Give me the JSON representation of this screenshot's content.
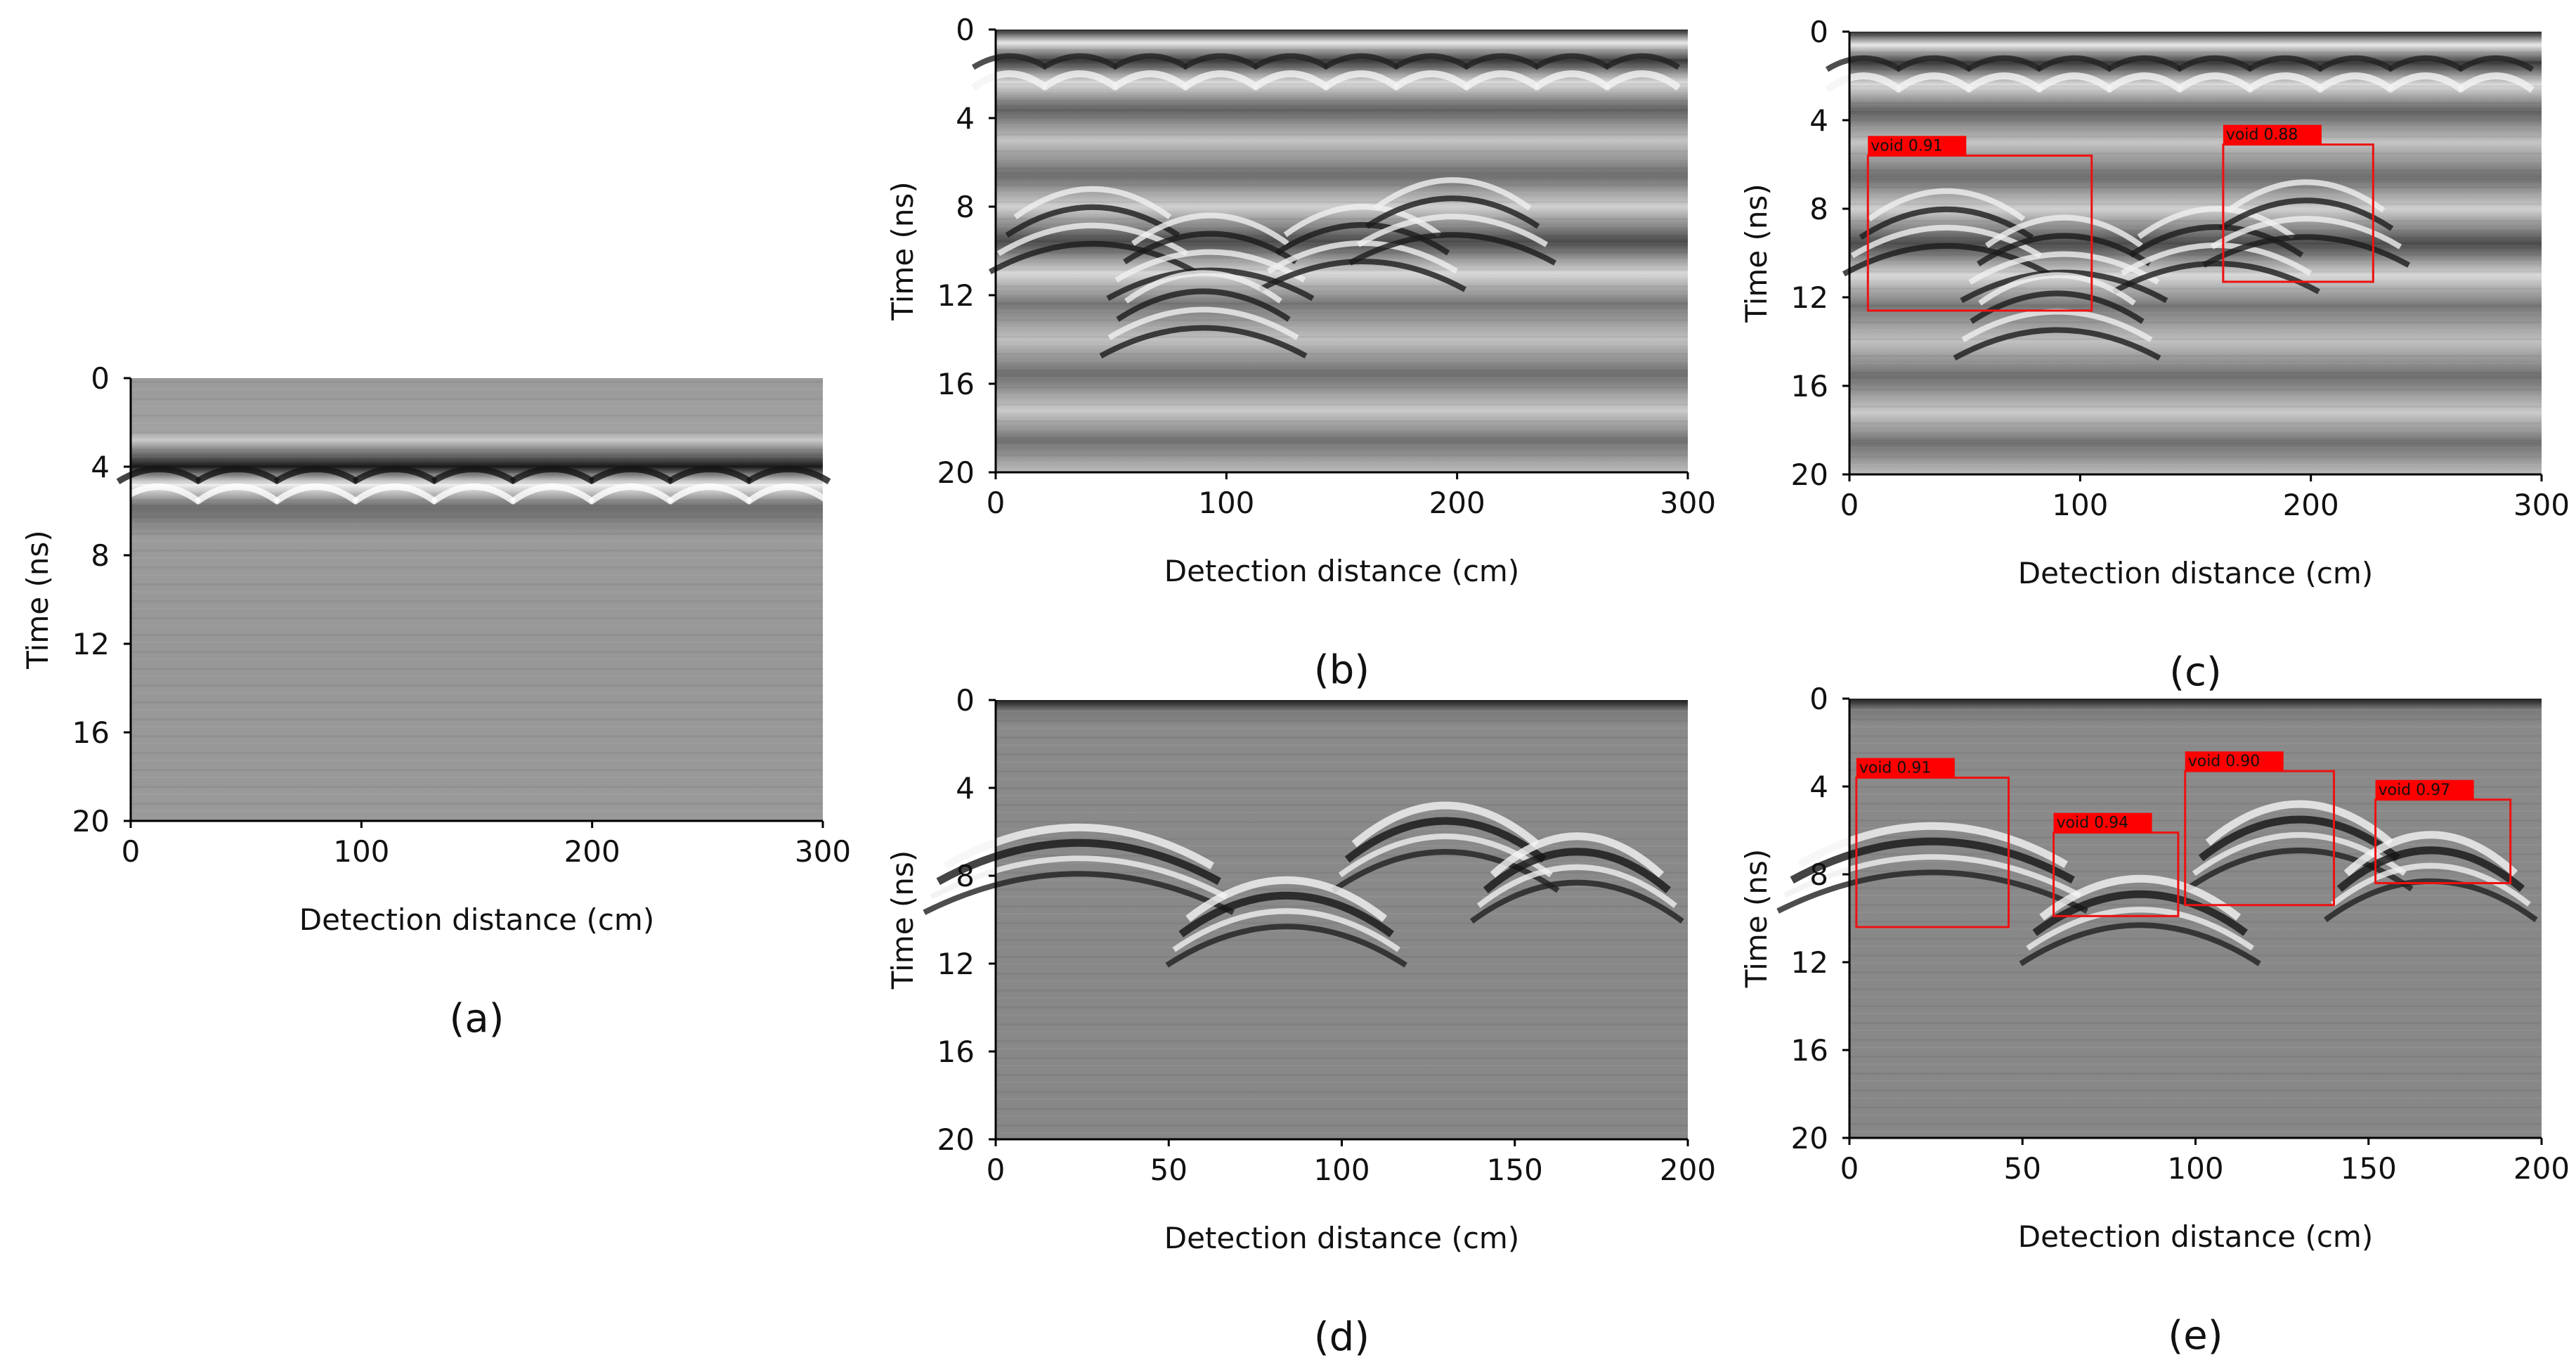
{
  "colors": {
    "detection_box": "#ee1111",
    "label_fill": "#ff0000",
    "label_text": "#000000",
    "axis": "#000000",
    "gpr_gray": "#8c8c8c"
  },
  "chart_data": [
    {
      "id": "a",
      "type": "heatmap",
      "panel_label": "(a)",
      "title": "",
      "xlabel": "Detection distance  (cm)",
      "ylabel": "Time (ns)",
      "xlim": [
        0,
        300
      ],
      "ylim": [
        0,
        20
      ],
      "xticks": [
        "0",
        "100",
        "200",
        "300"
      ],
      "yticks": [
        "0",
        "4",
        "8",
        "12",
        "16",
        "20"
      ],
      "detections": []
    },
    {
      "id": "b",
      "type": "heatmap",
      "panel_label": "(b)",
      "title": "",
      "xlabel": "Detection distance  (cm)",
      "ylabel": "Time (ns)",
      "xlim": [
        0,
        300
      ],
      "ylim": [
        0,
        20
      ],
      "xticks": [
        "0",
        "100",
        "200",
        "300"
      ],
      "yticks": [
        "0",
        "4",
        "8",
        "12",
        "16",
        "20"
      ],
      "detections": []
    },
    {
      "id": "c",
      "type": "heatmap",
      "panel_label": "(c)",
      "title": "",
      "xlabel": "Detection distance  (cm)",
      "ylabel": "Time (ns)",
      "xlim": [
        0,
        300
      ],
      "ylim": [
        0,
        20
      ],
      "xticks": [
        "0",
        "100",
        "200",
        "300"
      ],
      "yticks": [
        "0",
        "4",
        "8",
        "12",
        "16",
        "20"
      ],
      "detections": [
        {
          "label": "void 0.91",
          "x0": 8,
          "x1": 105,
          "y0": 5.6,
          "y1": 12.6
        },
        {
          "label": "void 0.88",
          "x0": 162,
          "x1": 227,
          "y0": 5.1,
          "y1": 11.3
        }
      ]
    },
    {
      "id": "d",
      "type": "heatmap",
      "panel_label": "(d)",
      "title": "",
      "xlabel": "Detection distance  (cm)",
      "ylabel": "Time (ns)",
      "xlim": [
        0,
        200
      ],
      "ylim": [
        0,
        20
      ],
      "xticks": [
        "0",
        "50",
        "100",
        "150",
        "200"
      ],
      "yticks": [
        "0",
        "4",
        "8",
        "12",
        "16",
        "20"
      ],
      "detections": []
    },
    {
      "id": "e",
      "type": "heatmap",
      "panel_label": "(e)",
      "title": "",
      "xlabel": "Detection distance  (cm)",
      "ylabel": "Time (ns)",
      "xlim": [
        0,
        200
      ],
      "ylim": [
        0,
        20
      ],
      "xticks": [
        "0",
        "50",
        "100",
        "150",
        "200"
      ],
      "yticks": [
        "0",
        "4",
        "8",
        "12",
        "16",
        "20"
      ],
      "detections": [
        {
          "label": "void 0.91",
          "x0": 2,
          "x1": 46,
          "y0": 3.6,
          "y1": 10.4
        },
        {
          "label": "void 0.94",
          "x0": 59,
          "x1": 95,
          "y0": 6.1,
          "y1": 9.9
        },
        {
          "label": "void 0.90",
          "x0": 97,
          "x1": 140,
          "y0": 3.3,
          "y1": 9.4
        },
        {
          "label": "void 0.97",
          "x0": 152,
          "x1": 191,
          "y0": 4.6,
          "y1": 8.4
        }
      ]
    }
  ]
}
